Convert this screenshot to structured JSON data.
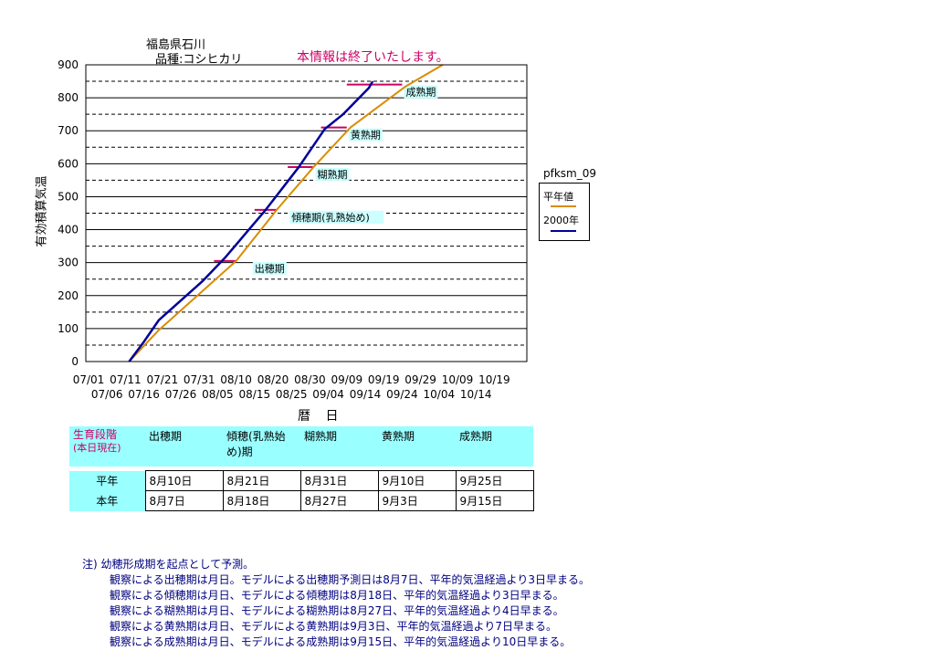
{
  "header": {
    "location": "福島県石川",
    "variety": "品種:コシヒカリ",
    "notice": "本情報は終了いたします。"
  },
  "chart_data": {
    "type": "line",
    "ylabel": "有効積算気温",
    "xlabel": "暦 日",
    "ylim": [
      0,
      900
    ],
    "yticks": [
      "0",
      "100",
      "200",
      "300",
      "400",
      "500",
      "600",
      "700",
      "800",
      "900"
    ],
    "xticks_top": [
      "07/01",
      "07/11",
      "07/21",
      "07/31",
      "08/10",
      "08/20",
      "08/30",
      "09/09",
      "09/19",
      "09/29",
      "10/09",
      "10/19"
    ],
    "xticks_bottom": [
      "07/06",
      "07/16",
      "07/26",
      "08/05",
      "08/15",
      "08/25",
      "09/04",
      "09/14",
      "09/24",
      "10/04",
      "10/14"
    ],
    "x_day_start": "07/01",
    "grid": "horizontal dashed",
    "legend_title": "pfksm_09",
    "legend_placement": "right",
    "series": [
      {
        "name": "平年値",
        "color": "#d98c00",
        "x": [
          "07/12",
          "07/20",
          "08/01",
          "08/10",
          "08/21",
          "08/31",
          "09/10",
          "09/25",
          "10/05"
        ],
        "y": [
          0,
          95,
          215,
          305,
          460,
          590,
          710,
          835,
          900
        ]
      },
      {
        "name": "2000年",
        "color": "#000099",
        "x": [
          "07/12",
          "07/16",
          "07/20",
          "08/01",
          "08/07",
          "08/18",
          "08/27",
          "09/03",
          "09/08",
          "09/15",
          "09/16"
        ],
        "y": [
          0,
          60,
          125,
          245,
          315,
          460,
          590,
          705,
          750,
          830,
          850
        ]
      }
    ],
    "stage_markers": [
      {
        "label": "出穂期",
        "y": 305,
        "x_from": "08/04",
        "x_to": "08/10",
        "label_x": "08/15"
      },
      {
        "label": "傾穂期(乳熟始め)",
        "y": 460,
        "x_from": "08/15",
        "x_to": "08/21",
        "label_x": "08/25"
      },
      {
        "label": "糊熟期",
        "y": 590,
        "x_from": "08/24",
        "x_to": "08/31",
        "label_x": "09/01"
      },
      {
        "label": "黄熟期",
        "y": 710,
        "x_from": "09/02",
        "x_to": "09/09",
        "label_x": "09/10"
      },
      {
        "label": "成熟期",
        "y": 840,
        "x_from": "09/09",
        "x_to": "09/24",
        "label_x": "09/25"
      }
    ],
    "marker_color": "#cc0066"
  },
  "table": {
    "corner_line1": "生育段階",
    "corner_line2": "(本日現在)",
    "headers": [
      "出穂期",
      "傾穂(乳熟始め)期",
      "糊熟期",
      "黄熟期",
      "成熟期"
    ],
    "rows": [
      {
        "label": "平年",
        "values": [
          "8月10日",
          "8月21日",
          "8月31日",
          "9月10日",
          "9月25日"
        ]
      },
      {
        "label": "本年",
        "values": [
          "8月7日",
          "8月18日",
          "8月27日",
          "9月3日",
          "9月15日"
        ]
      }
    ]
  },
  "notes": {
    "head": "注)  幼穂形成期を起点として予測。",
    "lines": [
      "観察による出穂期は月日。モデルによる出穂期予測日は8月7日、平年的気温経過より3日早まる。",
      "観察による傾穂期は月日、モデルによる傾穂期は8月18日、平年的気温経過より3日早まる。",
      "観察による糊熟期は月日、モデルによる糊熟期は8月27日、平年的気温経過より4日早まる。",
      "観察による黄熟期は月日、モデルによる黄熟期は9月3日、平年的気温経過より7日早まる。",
      "観察による成熟期は月日、モデルによる成熟期は9月15日、平年的気温経過より10日早まる。"
    ]
  }
}
